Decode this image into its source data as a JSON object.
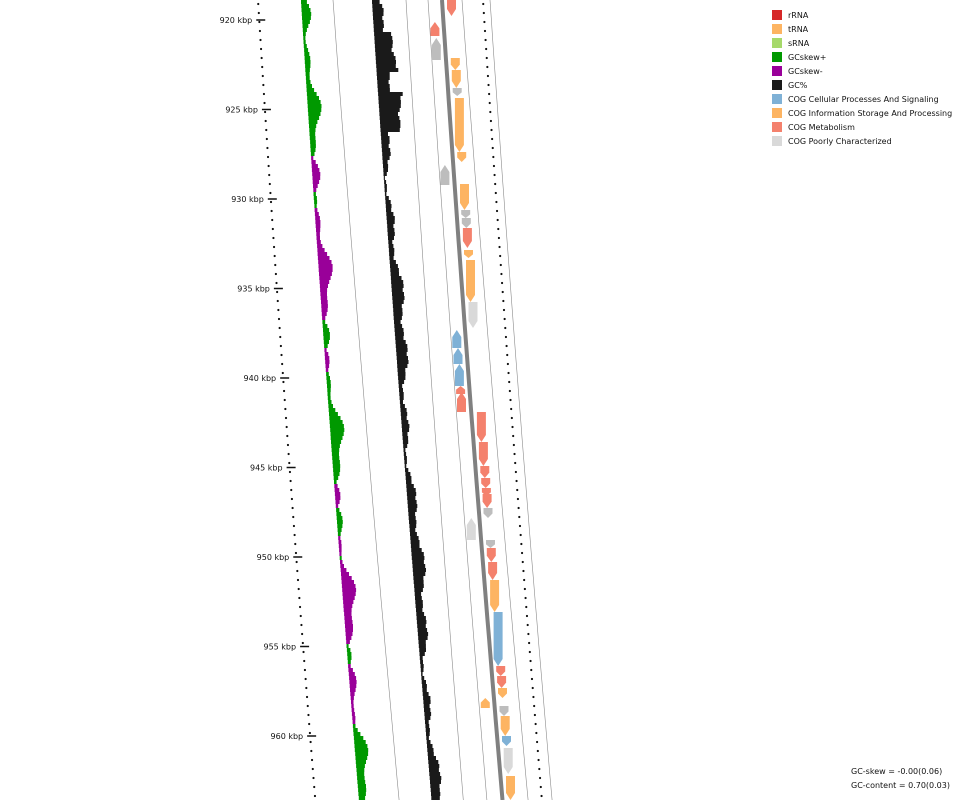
{
  "ticks": [
    "920 kbp",
    "925 kbp",
    "930 kbp",
    "935 kbp",
    "940 kbp",
    "945 kbp",
    "950 kbp",
    "955 kbp",
    "960 kbp"
  ],
  "legend": [
    {
      "label": "rRNA",
      "color": "#d62728"
    },
    {
      "label": "tRNA",
      "color": "#fdb462"
    },
    {
      "label": "sRNA",
      "color": "#a6d96a"
    },
    {
      "label": "GCskew+",
      "color": "#009900"
    },
    {
      "label": "GCskew-",
      "color": "#990099"
    },
    {
      "label": "GC%",
      "color": "#1a1a1a"
    },
    {
      "label": "COG Cellular Processes And Signaling",
      "color": "#7fb1d6"
    },
    {
      "label": "COG Information Storage And Processing",
      "color": "#fdb462"
    },
    {
      "label": "COG Metabolism",
      "color": "#f4816d"
    },
    {
      "label": "COG Poorly Characterized",
      "color": "#d9d9d9"
    }
  ],
  "stats": {
    "gc_skew": "GC-skew = -0.00(0.06)",
    "gc_content": "GC-content = 0.70(0.03)"
  }
}
